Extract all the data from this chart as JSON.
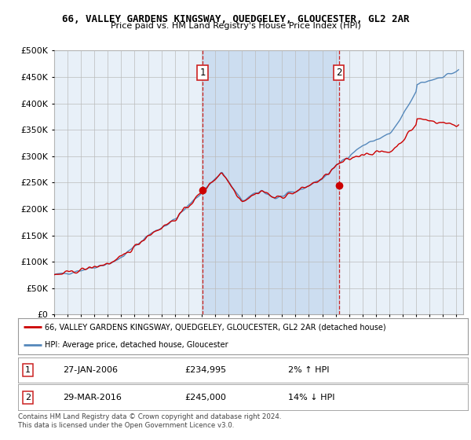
{
  "title": "66, VALLEY GARDENS KINGSWAY, QUEDGELEY, GLOUCESTER, GL2 2AR",
  "subtitle": "Price paid vs. HM Land Registry's House Price Index (HPI)",
  "legend_line1": "66, VALLEY GARDENS KINGSWAY, QUEDGELEY, GLOUCESTER, GL2 2AR (detached house)",
  "legend_line2": "HPI: Average price, detached house, Gloucester",
  "footnote": "Contains HM Land Registry data © Crown copyright and database right 2024.\nThis data is licensed under the Open Government Licence v3.0.",
  "sale1_label": "1",
  "sale1_date": "27-JAN-2006",
  "sale1_price": "£234,995",
  "sale1_hpi": "2% ↑ HPI",
  "sale1_year": 2006.07,
  "sale1_value": 234995,
  "sale2_label": "2",
  "sale2_date": "29-MAR-2016",
  "sale2_price": "£245,000",
  "sale2_hpi": "14% ↓ HPI",
  "sale2_year": 2016.24,
  "sale2_value": 245000,
  "hpi_color": "#5588bb",
  "price_color": "#cc0000",
  "plot_bg_color": "#e8f0f8",
  "shade_color": "#ccddf0",
  "grid_color": "#bbbbbb",
  "vline_color": "#cc2222",
  "ylim": [
    0,
    500000
  ],
  "xlim_start": 1995,
  "xlim_end": 2025.5
}
